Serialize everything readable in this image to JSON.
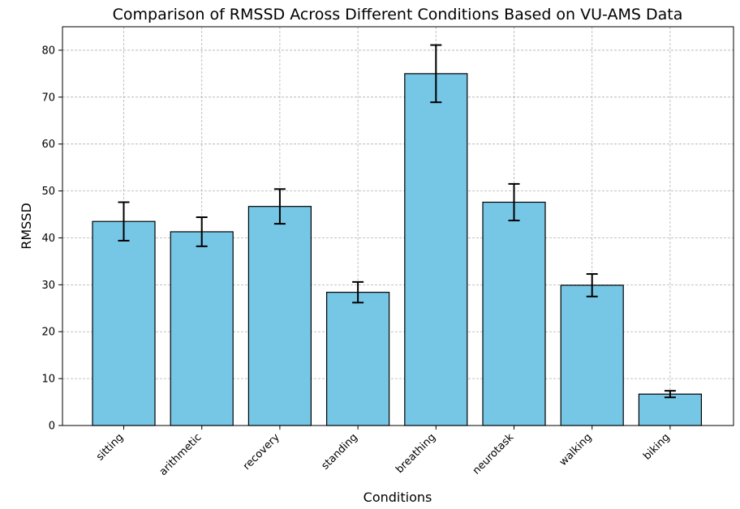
{
  "chart_data": {
    "type": "bar",
    "title": "Comparison of RMSSD Across Different Conditions Based on VU-AMS Data",
    "xlabel": "Conditions",
    "ylabel": "RMSSD",
    "categories": [
      "sitting",
      "arithmetic",
      "recovery",
      "standing",
      "breathing",
      "neurotask",
      "walking",
      "biking"
    ],
    "values": [
      43.5,
      41.3,
      46.7,
      28.4,
      75.0,
      47.6,
      29.9,
      6.7
    ],
    "errors": [
      4.1,
      3.1,
      3.7,
      2.2,
      6.1,
      3.9,
      2.4,
      0.7
    ],
    "ylim": [
      0,
      85
    ],
    "yticks": [
      0,
      10,
      20,
      30,
      40,
      50,
      60,
      70,
      80
    ],
    "grid": true,
    "bar_color": "#76c6e6",
    "edge_color": "#000000"
  }
}
